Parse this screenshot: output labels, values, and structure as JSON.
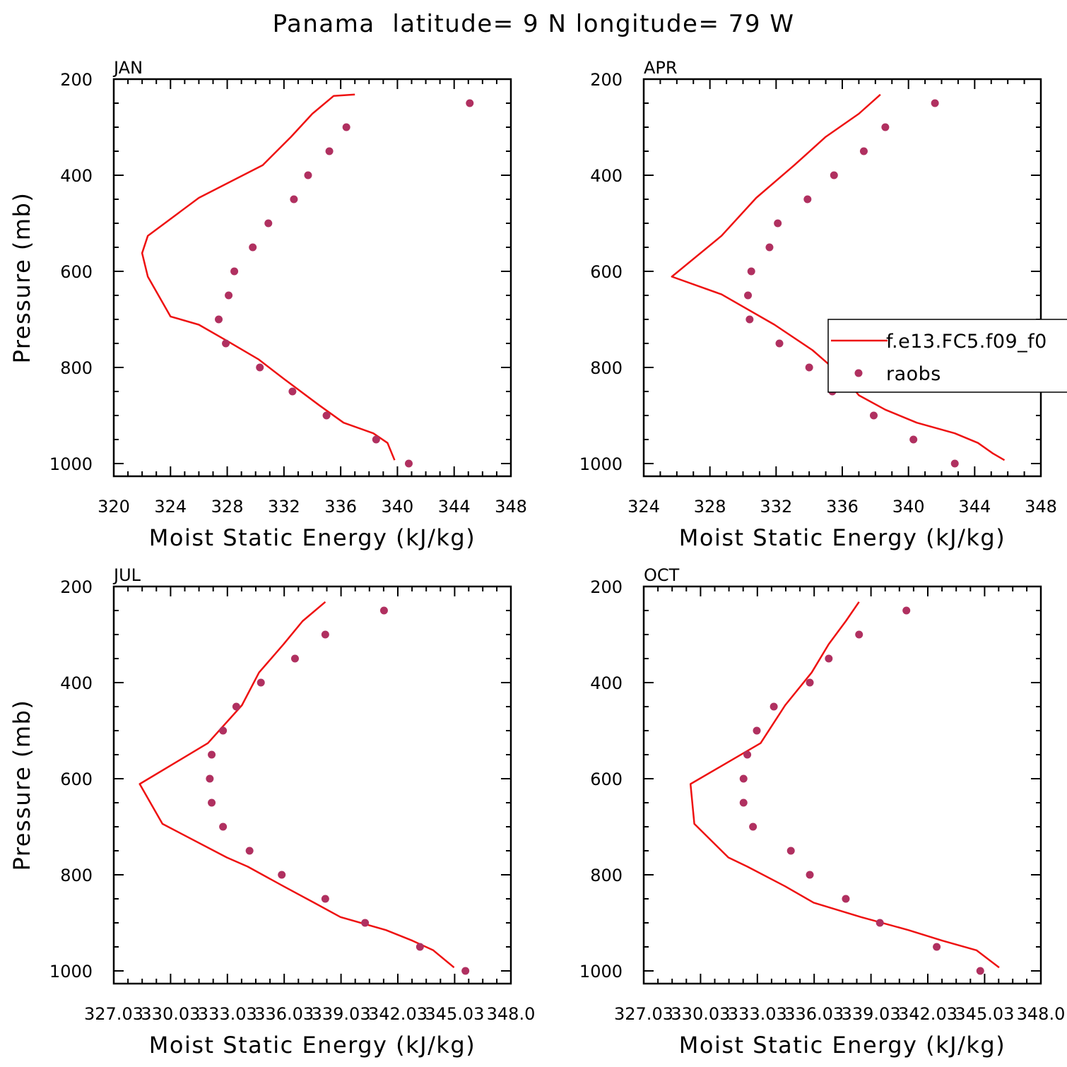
{
  "figure_title": "Panama  latitude= 9 N longitude= 79 W",
  "legend": {
    "model_label": "f.e13.FC5.f09_f0",
    "obs_label": "raobs"
  },
  "colors": {
    "model_line": "#ee1111",
    "obs_marker": "#b03060",
    "axes": "#000000"
  },
  "chart_data": [
    {
      "type": "line",
      "panel": "JAN",
      "xlabel": "Moist Static Energy (kJ/kg)",
      "ylabel": "Pressure (mb)",
      "xlim": [
        320,
        348
      ],
      "ylim": [
        1000,
        200
      ],
      "xticks": [
        320,
        324,
        328,
        332,
        336,
        340,
        344,
        348
      ],
      "xtick_labels": [
        "320",
        "324",
        "328",
        "332",
        "336",
        "340",
        "344",
        "348"
      ],
      "yticks": [
        200,
        400,
        600,
        800,
        1000
      ],
      "ytick_labels": [
        "200",
        "400",
        "600",
        "800",
        "1000"
      ],
      "series": [
        {
          "kind": "line",
          "x": [
            339.8,
            339.3,
            338.3,
            336.2,
            334.5,
            332.0,
            330.2,
            328.0,
            326.0,
            324.0,
            322.4,
            322.0,
            322.4,
            326.0,
            330.5,
            332.5,
            334.0,
            335.5,
            337.0
          ],
          "y": [
            993,
            957,
            937,
            915,
            879,
            824,
            783,
            745,
            711,
            694,
            611,
            562,
            526,
            447,
            379,
            320,
            272,
            235,
            232
          ]
        },
        {
          "kind": "scatter",
          "x": [
            340.8,
            338.5,
            335.0,
            332.6,
            330.3,
            327.9,
            327.4,
            328.1,
            328.5,
            329.8,
            330.9,
            332.7,
            333.7,
            335.2,
            336.4,
            345.1
          ],
          "y": [
            1000,
            950,
            900,
            850,
            800,
            750,
            700,
            650,
            600,
            550,
            500,
            450,
            400,
            350,
            300,
            250
          ]
        }
      ]
    },
    {
      "type": "line",
      "panel": "APR",
      "xlabel": "Moist Static Energy (kJ/kg)",
      "ylabel": "",
      "xlim": [
        324,
        348
      ],
      "ylim": [
        1000,
        200
      ],
      "xticks": [
        324,
        328,
        332,
        336,
        340,
        344,
        348
      ],
      "xtick_labels": [
        "324",
        "328",
        "332",
        "336",
        "340",
        "344",
        "348"
      ],
      "yticks": [
        200,
        400,
        600,
        800,
        1000
      ],
      "ytick_labels": [
        "200",
        "400",
        "600",
        "800",
        "1000"
      ],
      "legend_position": "right",
      "series": [
        {
          "kind": "line",
          "x": [
            345.8,
            345.1,
            344.2,
            342.8,
            340.5,
            338.6,
            337.0,
            336.2,
            334.2,
            331.9,
            328.7,
            325.7,
            328.7,
            330.8,
            333.1,
            335.0,
            337.0,
            338.3
          ],
          "y": [
            993,
            979,
            957,
            937,
            915,
            888,
            858,
            824,
            764,
            711,
            648,
            611,
            526,
            447,
            379,
            320,
            272,
            232
          ]
        },
        {
          "kind": "scatter",
          "x": [
            342.8,
            340.3,
            337.9,
            335.4,
            334.0,
            332.2,
            330.4,
            330.3,
            330.5,
            331.6,
            332.1,
            333.9,
            335.5,
            337.3,
            338.6,
            341.6
          ],
          "y": [
            1000,
            950,
            900,
            850,
            800,
            750,
            700,
            650,
            600,
            550,
            500,
            450,
            400,
            350,
            300,
            250
          ]
        }
      ]
    },
    {
      "type": "line",
      "panel": "JUL",
      "xlabel": "Moist Static Energy (kJ/kg)",
      "ylabel": "Pressure (mb)",
      "xlim": [
        327.03,
        348.0
      ],
      "ylim": [
        1000,
        200
      ],
      "xticks": [
        327.03,
        330.03,
        333.03,
        336.03,
        339.03,
        342.03,
        345.03,
        348.0
      ],
      "xtick_labels": [
        "327.03",
        "330.03",
        "333.03",
        "336.03",
        "339.03",
        "342.03",
        "345.03",
        "348.0"
      ],
      "yticks": [
        200,
        400,
        600,
        800,
        1000
      ],
      "ytick_labels": [
        "200",
        "400",
        "600",
        "800",
        "1000"
      ],
      "series": [
        {
          "kind": "line",
          "x": [
            345.0,
            343.9,
            342.8,
            341.4,
            339.0,
            337.6,
            336.0,
            334.1,
            333.0,
            329.6,
            328.4,
            332.0,
            333.8,
            334.7,
            336.0,
            337.0,
            338.2
          ],
          "y": [
            993,
            957,
            937,
            915,
            888,
            858,
            824,
            783,
            764,
            694,
            611,
            526,
            447,
            379,
            320,
            272,
            232
          ]
        },
        {
          "kind": "scatter",
          "x": [
            345.6,
            343.2,
            340.3,
            338.2,
            335.9,
            334.2,
            332.8,
            332.2,
            332.1,
            332.2,
            332.8,
            333.5,
            334.8,
            336.6,
            338.2,
            341.3
          ],
          "y": [
            1000,
            950,
            900,
            850,
            800,
            750,
            700,
            650,
            600,
            550,
            500,
            450,
            400,
            350,
            300,
            250
          ]
        }
      ]
    },
    {
      "type": "line",
      "panel": "OCT",
      "xlabel": "Moist Static Energy (kJ/kg)",
      "ylabel": "",
      "xlim": [
        327.03,
        348.0
      ],
      "ylim": [
        1000,
        200
      ],
      "xticks": [
        327.03,
        330.03,
        333.03,
        336.03,
        339.03,
        342.03,
        345.03,
        348.0
      ],
      "xtick_labels": [
        "327.03",
        "330.03",
        "333.03",
        "336.03",
        "339.03",
        "342.03",
        "345.03",
        "348.0"
      ],
      "yticks": [
        200,
        400,
        600,
        800,
        1000
      ],
      "ytick_labels": [
        "200",
        "400",
        "600",
        "800",
        "1000"
      ],
      "series": [
        {
          "kind": "line",
          "x": [
            345.8,
            344.6,
            342.8,
            341.0,
            338.5,
            336.0,
            334.5,
            332.5,
            331.5,
            329.7,
            329.5,
            333.2,
            334.5,
            335.9,
            336.8,
            337.7,
            338.4
          ],
          "y": [
            993,
            957,
            937,
            915,
            888,
            858,
            824,
            783,
            764,
            694,
            611,
            526,
            447,
            379,
            320,
            272,
            232
          ]
        },
        {
          "kind": "scatter",
          "x": [
            344.8,
            342.5,
            339.5,
            337.7,
            335.8,
            334.8,
            332.8,
            332.3,
            332.3,
            332.5,
            333.0,
            333.9,
            335.8,
            336.8,
            338.4,
            340.9
          ],
          "y": [
            1000,
            950,
            900,
            850,
            800,
            750,
            700,
            650,
            600,
            550,
            500,
            450,
            400,
            350,
            300,
            250
          ]
        }
      ]
    }
  ]
}
